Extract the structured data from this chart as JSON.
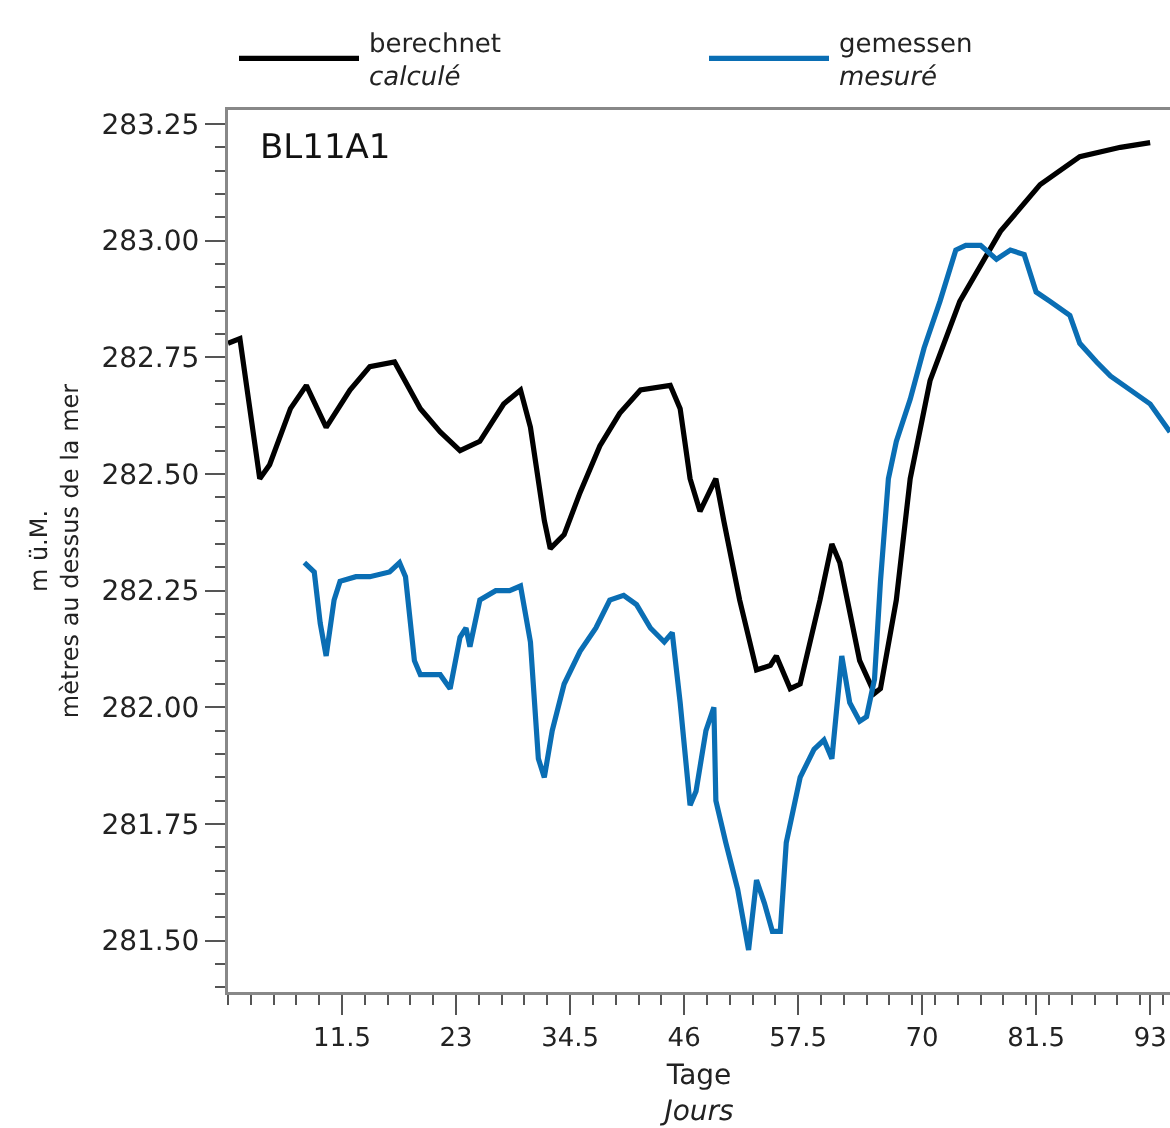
{
  "chart_data": {
    "type": "line",
    "xlabel": "Tage\nJours",
    "ylabel": "m ü.M.\nmètres au dessus de la mer",
    "annotations": [
      "BL11A1"
    ],
    "xlim": [
      0,
      95
    ],
    "ylim": [
      281.39,
      283.28
    ],
    "xticks": [
      11.5,
      23,
      34.5,
      46,
      57.5,
      70,
      81.5,
      93
    ],
    "yticks": [
      {
        "value": 281.5,
        "label": "281.50"
      },
      {
        "value": 281.75,
        "label": "281.75"
      },
      {
        "value": 282,
        "label": "282.00"
      },
      {
        "value": 282.25,
        "label": "282.25"
      },
      {
        "value": 282.5,
        "label": "282.50"
      },
      {
        "value": 282.75,
        "label": "282.75"
      },
      {
        "value": 283,
        "label": "283.00"
      },
      {
        "value": 283.25,
        "label": "283.25"
      }
    ],
    "grid": false,
    "legend": "top",
    "marker": "none",
    "line_style": "solid",
    "series": [
      {
        "name": "berechnet\ncalculé",
        "color": "#000000",
        "x": [
          0,
          1.2,
          3.2,
          4.2,
          6.3,
          7.9,
          9.9,
          12.3,
          14.3,
          16.8,
          19.4,
          21.4,
          23.4,
          25.4,
          27.8,
          29.5,
          30.5,
          31.9,
          32.5,
          33.9,
          35.5,
          37.5,
          39.5,
          41.6,
          44.6,
          45.6,
          46.6,
          47.6,
          49.2,
          50.0,
          51.6,
          53.3,
          54.7,
          55.3,
          56.7,
          57.7,
          59.7,
          60.9,
          61.7,
          63.7,
          65.2,
          65.8,
          67.4,
          68.8,
          70.8,
          73.8,
          77.9,
          81.9,
          85.9,
          90.0,
          93.0
        ],
        "values": [
          282.78,
          282.79,
          282.49,
          282.52,
          282.64,
          282.69,
          282.6,
          282.68,
          282.73,
          282.74,
          282.64,
          282.59,
          282.55,
          282.57,
          282.65,
          282.68,
          282.6,
          282.4,
          282.34,
          282.37,
          282.46,
          282.56,
          282.63,
          282.68,
          282.69,
          282.64,
          282.49,
          282.42,
          282.49,
          282.4,
          282.23,
          282.08,
          282.09,
          282.11,
          282.04,
          282.05,
          282.23,
          282.35,
          282.31,
          282.1,
          282.03,
          282.04,
          282.23,
          282.49,
          282.7,
          282.87,
          283.02,
          283.12,
          283.18,
          283.2,
          283.21
        ]
      },
      {
        "name": "gemessen\nmesuré",
        "color": "#0a6eb4",
        "x": [
          7.7,
          8.7,
          9.3,
          9.9,
          10.7,
          11.3,
          12.9,
          14.3,
          16.3,
          17.3,
          17.9,
          18.8,
          19.4,
          21.4,
          22.4,
          23.4,
          24.0,
          24.4,
          25.4,
          27.0,
          28.4,
          29.5,
          30.5,
          31.3,
          31.9,
          32.7,
          33.9,
          35.5,
          37.1,
          38.5,
          39.9,
          41.2,
          42.6,
          44.0,
          44.8,
          45.6,
          46.6,
          47.2,
          48.2,
          49.0,
          49.2,
          50.2,
          51.4,
          52.5,
          53.3,
          54.1,
          54.9,
          55.7,
          56.3,
          57.7,
          59.1,
          60.1,
          60.9,
          61.9,
          62.7,
          63.7,
          64.4,
          65.2,
          65.8,
          66.6,
          67.4,
          68.8,
          70.2,
          71.8,
          73.4,
          74.4,
          75.9,
          77.5,
          78.9,
          80.3,
          81.5,
          82.9,
          84.9,
          85.9,
          87.6,
          89.0,
          91.0,
          93.0,
          95.0
        ],
        "values": [
          282.31,
          282.29,
          282.18,
          282.11,
          282.23,
          282.27,
          282.28,
          282.28,
          282.29,
          282.31,
          282.28,
          282.1,
          282.07,
          282.07,
          282.04,
          282.15,
          282.17,
          282.13,
          282.23,
          282.25,
          282.25,
          282.26,
          282.14,
          281.89,
          281.85,
          281.95,
          282.05,
          282.12,
          282.17,
          282.23,
          282.24,
          282.22,
          282.17,
          282.14,
          282.16,
          282.01,
          281.79,
          281.82,
          281.95,
          282.0,
          281.8,
          281.71,
          281.61,
          281.48,
          281.63,
          281.58,
          281.52,
          281.52,
          281.71,
          281.85,
          281.91,
          281.93,
          281.89,
          282.11,
          282.01,
          281.97,
          281.98,
          282.06,
          282.27,
          282.49,
          282.57,
          282.66,
          282.77,
          282.87,
          282.98,
          282.99,
          282.99,
          282.96,
          282.98,
          282.97,
          282.89,
          282.87,
          282.84,
          282.78,
          282.74,
          282.71,
          282.68,
          282.65,
          282.59
        ]
      }
    ]
  }
}
